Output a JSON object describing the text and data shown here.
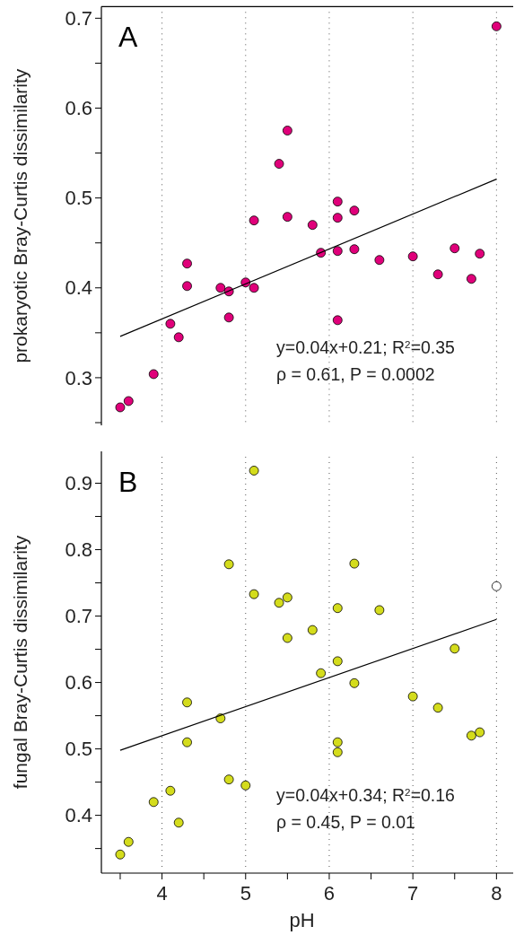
{
  "chart_data": [
    {
      "type": "scatter",
      "ylabel": "prokaryotic Bray-Curtis dissimilarity",
      "xlim": [
        3.275,
        8.2
      ],
      "xticks": [
        4,
        5,
        6,
        7,
        8
      ],
      "ylim": [
        0.247,
        0.713
      ],
      "yticks": [
        {
          "value": 0.25,
          "label": null
        },
        0.3,
        {
          "value": 0.35,
          "label": null
        },
        0.4,
        {
          "value": 0.45,
          "label": null
        },
        0.5,
        {
          "value": 0.55,
          "label": null
        },
        0.6,
        {
          "value": 0.65,
          "label": null
        },
        0.7
      ],
      "tick_labels": "y",
      "grid": "x",
      "annotations": [
        "A",
        "y=0.04x+0.21; R$^{2}$=0.35",
        "ρ = 0.61, P = 0.0002"
      ],
      "series": [
        {
          "color": "#e0007a",
          "x": [
            8.0,
            5.5,
            5.4,
            6.1,
            6.3,
            5.1,
            5.5,
            5.8,
            6.1,
            5.9,
            6.1,
            6.3,
            6.6,
            7.0,
            7.5,
            7.3,
            7.7,
            7.8,
            4.3,
            4.3,
            4.7,
            4.8,
            5.0,
            5.1,
            4.8,
            6.1,
            4.1,
            4.2,
            3.9,
            3.6,
            3.5
          ],
          "values": [
            0.691,
            0.575,
            0.538,
            0.496,
            0.486,
            0.475,
            0.479,
            0.47,
            0.478,
            0.439,
            0.441,
            0.443,
            0.431,
            0.435,
            0.444,
            0.415,
            0.41,
            0.438,
            0.427,
            0.402,
            0.4,
            0.396,
            0.406,
            0.4,
            0.367,
            0.364,
            0.36,
            0.345,
            0.304,
            0.274,
            0.267
          ]
        },
        {
          "type": "line",
          "color": "#000000",
          "x": [
            3.5,
            8.0
          ],
          "values": [
            0.346,
            0.521
          ]
        }
      ]
    },
    {
      "type": "scatter",
      "xlabel": "pH",
      "ylabel": "fungal Bray-Curtis dissimilarity",
      "xlim": [
        3.275,
        8.2
      ],
      "xticks": [
        {
          "value": 3.5,
          "label": null
        },
        4,
        {
          "value": 4.5,
          "label": null
        },
        5,
        {
          "value": 5.5,
          "label": null
        },
        6,
        {
          "value": 6.5,
          "label": null
        },
        7,
        {
          "value": 7.5,
          "label": null
        },
        8
      ],
      "ylim": [
        0.313,
        0.948
      ],
      "yticks": [
        {
          "value": 0.35,
          "label": null
        },
        0.4,
        {
          "value": 0.45,
          "label": null
        },
        0.5,
        {
          "value": 0.55,
          "label": null
        },
        0.6,
        {
          "value": 0.65,
          "label": null
        },
        0.7,
        {
          "value": 0.75,
          "label": null
        },
        0.8,
        {
          "value": 0.85,
          "label": null
        },
        0.9
      ],
      "grid": "x",
      "annotations": [
        "B",
        "y=0.04x+0.34; R$^{2}$=0.16",
        "ρ = 0.45, P = 0.01"
      ],
      "series": [
        {
          "color": "#d4dc1c",
          "x": [
            5.1,
            4.8,
            6.3,
            5.1,
            5.4,
            5.5,
            6.1,
            6.6,
            5.8,
            5.5,
            7.5,
            6.1,
            5.9,
            6.3,
            7.0,
            7.3,
            4.3,
            4.7,
            7.7,
            7.8,
            4.3,
            6.1,
            6.1,
            4.8,
            5.0,
            4.1,
            3.9,
            4.2,
            3.6,
            3.5
          ],
          "values": [
            0.919,
            0.778,
            0.779,
            0.733,
            0.72,
            0.728,
            0.712,
            0.709,
            0.679,
            0.667,
            0.651,
            0.632,
            0.614,
            0.599,
            0.579,
            0.562,
            0.57,
            0.546,
            0.52,
            0.525,
            0.51,
            0.51,
            0.495,
            0.454,
            0.445,
            0.437,
            0.42,
            0.389,
            0.36,
            0.341
          ]
        },
        {
          "color": "#ffffff",
          "x": [
            8.0
          ],
          "values": [
            0.745
          ]
        },
        {
          "type": "line",
          "color": "#000000",
          "x": [
            3.5,
            8.0
          ],
          "values": [
            0.498,
            0.695
          ]
        }
      ]
    }
  ]
}
